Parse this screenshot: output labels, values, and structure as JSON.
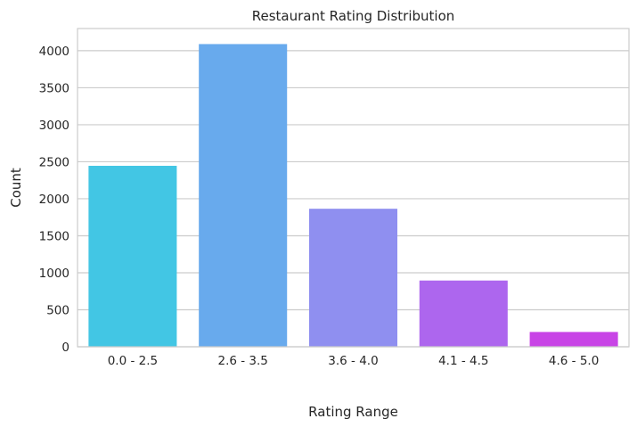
{
  "chart_data": {
    "type": "bar",
    "title": "Restaurant Rating Distribution",
    "xlabel": "Rating Range",
    "ylabel": "Count",
    "categories": [
      "0.0 - 2.5",
      "2.6 - 3.5",
      "3.6 - 4.0",
      "4.1 - 4.5",
      "4.6 - 5.0"
    ],
    "values": [
      2445,
      4090,
      1865,
      895,
      200
    ],
    "colors": [
      "#42c6e4",
      "#68aaed",
      "#8f8ff0",
      "#ad66ee",
      "#c844e6"
    ],
    "ylim": [
      0,
      4300
    ],
    "yticks": [
      0,
      500,
      1000,
      1500,
      2000,
      2500,
      3000,
      3500,
      4000
    ],
    "grid": "y",
    "legend": "none"
  }
}
